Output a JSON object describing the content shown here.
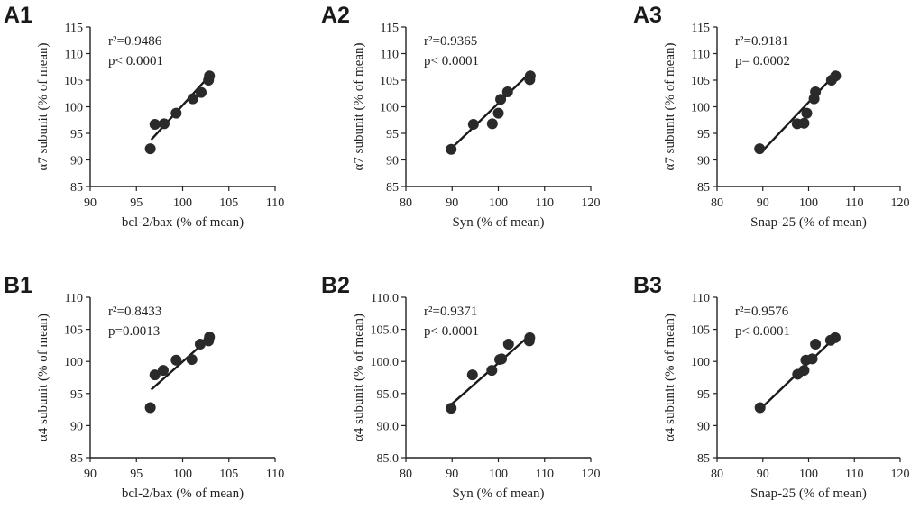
{
  "chart_data": [
    {
      "id": "A1",
      "type": "scatter",
      "panel_label": "A1",
      "xlabel": "bcl-2/bax (% of mean)",
      "ylabel": "α7 subunit (% of mean)",
      "xlim": [
        90,
        110
      ],
      "ylim": [
        85,
        115
      ],
      "xticks": [
        90,
        95,
        100,
        105,
        110
      ],
      "yticks": [
        85,
        90,
        95,
        100,
        105,
        110,
        115
      ],
      "xtick_labels": [
        "90",
        "95",
        "100",
        "105",
        "110"
      ],
      "ytick_labels": [
        "85",
        "90",
        "95",
        "100",
        "105",
        "110",
        "115"
      ],
      "annotation": [
        "r²=0.9486",
        "p< 0.0001"
      ],
      "points": [
        [
          96.5,
          92.1
        ],
        [
          97.0,
          96.7
        ],
        [
          98.0,
          96.8
        ],
        [
          99.3,
          98.8
        ],
        [
          101.1,
          101.5
        ],
        [
          102.0,
          102.7
        ],
        [
          102.8,
          105.0
        ],
        [
          102.9,
          105.8
        ]
      ],
      "fit": [
        [
          96.6,
          93.8
        ],
        [
          103.0,
          106.0
        ]
      ]
    },
    {
      "id": "A2",
      "type": "scatter",
      "panel_label": "A2",
      "xlabel": "Syn (% of mean)",
      "ylabel": "α7 subunit (% of mean)",
      "xlim": [
        80,
        120
      ],
      "ylim": [
        85,
        115
      ],
      "xticks": [
        80,
        90,
        100,
        110,
        120
      ],
      "yticks": [
        85,
        90,
        95,
        100,
        105,
        110,
        115
      ],
      "xtick_labels": [
        "80",
        "90",
        "100",
        "110",
        "120"
      ],
      "ytick_labels": [
        "85",
        "90",
        "95",
        "100",
        "105",
        "110",
        "115"
      ],
      "annotation": [
        "r²=0.9365",
        "p< 0.0001"
      ],
      "points": [
        [
          89.8,
          92.0
        ],
        [
          94.6,
          96.7
        ],
        [
          98.7,
          96.8
        ],
        [
          100.0,
          98.8
        ],
        [
          100.5,
          101.4
        ],
        [
          102.0,
          102.8
        ],
        [
          106.8,
          105.1
        ],
        [
          106.9,
          105.8
        ]
      ],
      "fit": [
        [
          90.0,
          92.3
        ],
        [
          107.0,
          106.5
        ]
      ]
    },
    {
      "id": "A3",
      "type": "scatter",
      "panel_label": "A3",
      "xlabel": "Snap-25 (% of mean)",
      "ylabel": "α7 subunit (% of mean)",
      "xlim": [
        80,
        120
      ],
      "ylim": [
        85,
        115
      ],
      "xticks": [
        80,
        90,
        100,
        110,
        120
      ],
      "yticks": [
        85,
        90,
        95,
        100,
        105,
        110,
        115
      ],
      "xtick_labels": [
        "80",
        "90",
        "100",
        "110",
        "120"
      ],
      "ytick_labels": [
        "85",
        "90",
        "95",
        "100",
        "105",
        "110",
        "115"
      ],
      "annotation": [
        "r²=0.9181",
        "p= 0.0002"
      ],
      "points": [
        [
          89.3,
          92.1
        ],
        [
          97.5,
          96.8
        ],
        [
          99.0,
          96.9
        ],
        [
          99.6,
          98.8
        ],
        [
          101.2,
          101.5
        ],
        [
          101.5,
          102.8
        ],
        [
          105.0,
          105.0
        ],
        [
          105.9,
          105.8
        ]
      ],
      "fit": [
        [
          89.5,
          91.3
        ],
        [
          106.0,
          106.3
        ]
      ]
    },
    {
      "id": "B1",
      "type": "scatter",
      "panel_label": "B1",
      "xlabel": "bcl-2/bax (% of mean)",
      "ylabel": "α4 subunit (% of mean)",
      "xlim": [
        90,
        110
      ],
      "ylim": [
        85,
        110
      ],
      "xticks": [
        90,
        95,
        100,
        105,
        110
      ],
      "yticks": [
        85,
        90,
        95,
        100,
        105,
        110
      ],
      "xtick_labels": [
        "90",
        "95",
        "100",
        "105",
        "110"
      ],
      "ytick_labels": [
        "85",
        "90",
        "95",
        "100",
        "105",
        "110"
      ],
      "annotation": [
        "r²=0.8433",
        "p=0.0013"
      ],
      "points": [
        [
          96.5,
          92.8
        ],
        [
          97.0,
          97.9
        ],
        [
          97.9,
          98.6
        ],
        [
          99.3,
          100.2
        ],
        [
          101.0,
          100.3
        ],
        [
          101.9,
          102.7
        ],
        [
          102.8,
          103.2
        ],
        [
          102.9,
          103.8
        ]
      ],
      "fit": [
        [
          96.6,
          95.6
        ],
        [
          103.0,
          103.8
        ]
      ]
    },
    {
      "id": "B2",
      "type": "scatter",
      "panel_label": "B2",
      "xlabel": "Syn (% of mean)",
      "ylabel": "α4 subunit (% of mean)",
      "xlim": [
        80,
        120
      ],
      "ylim": [
        85,
        110
      ],
      "xticks": [
        80,
        90,
        100,
        110,
        120
      ],
      "yticks": [
        85,
        90,
        95,
        100,
        105,
        110
      ],
      "xtick_labels": [
        "80",
        "90",
        "100",
        "110",
        "120"
      ],
      "ytick_labels": [
        "85.0",
        "90.0",
        "95.0",
        "100.0",
        "105.0",
        "110.0"
      ],
      "annotation": [
        "r²=0.9371",
        "p< 0.0001"
      ],
      "points": [
        [
          89.8,
          92.7
        ],
        [
          94.4,
          97.9
        ],
        [
          98.6,
          98.6
        ],
        [
          100.3,
          100.3
        ],
        [
          100.7,
          100.4
        ],
        [
          102.2,
          102.7
        ],
        [
          106.7,
          103.2
        ],
        [
          106.8,
          103.7
        ]
      ],
      "fit": [
        [
          90.0,
          93.4
        ],
        [
          107.0,
          104.2
        ]
      ]
    },
    {
      "id": "B3",
      "type": "scatter",
      "panel_label": "B3",
      "xlabel": "Snap-25 (% of mean)",
      "ylabel": "α4 subunit (% of mean)",
      "xlim": [
        80,
        120
      ],
      "ylim": [
        85,
        110
      ],
      "xticks": [
        80,
        90,
        100,
        110,
        120
      ],
      "yticks": [
        85,
        90,
        95,
        100,
        105,
        110
      ],
      "xtick_labels": [
        "80",
        "90",
        "100",
        "110",
        "120"
      ],
      "ytick_labels": [
        "85",
        "90",
        "95",
        "100",
        "105",
        "110"
      ],
      "annotation": [
        "r²=0.9576",
        "p< 0.0001"
      ],
      "points": [
        [
          89.4,
          92.8
        ],
        [
          97.6,
          98.0
        ],
        [
          99.0,
          98.6
        ],
        [
          99.4,
          100.2
        ],
        [
          100.8,
          100.4
        ],
        [
          101.5,
          102.7
        ],
        [
          104.8,
          103.3
        ],
        [
          105.8,
          103.7
        ]
      ],
      "fit": [
        [
          89.5,
          92.6
        ],
        [
          106.0,
          103.9
        ]
      ]
    }
  ]
}
